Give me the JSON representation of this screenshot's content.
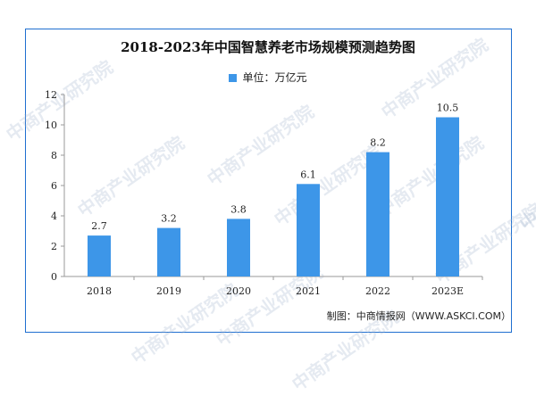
{
  "chart_data": {
    "type": "bar",
    "title": "2018-2023年中国智慧养老市场规模预测趋势图",
    "legend": {
      "label": "单位：万亿元",
      "position": "top-center"
    },
    "categories": [
      "2018",
      "2019",
      "2020",
      "2021",
      "2022",
      "2023E"
    ],
    "series": [
      {
        "values": [
          2.7,
          3.2,
          3.8,
          6.1,
          8.2,
          10.5
        ],
        "color": "#3d96e8"
      }
    ],
    "data_labels": [
      "2.7",
      "3.2",
      "3.8",
      "6.1",
      "8.2",
      "10.5"
    ],
    "ylim": [
      0,
      12
    ],
    "yticks": [
      0,
      2,
      4,
      6,
      8,
      10,
      12
    ],
    "grid": false,
    "xlabel": "",
    "ylabel": ""
  },
  "source": "制图：中商情报网（WWW.ASKCI.COM）",
  "watermark": "中商产业研究院",
  "colors": {
    "bar": "#3d96e8",
    "frame": "#1f6fd0"
  }
}
